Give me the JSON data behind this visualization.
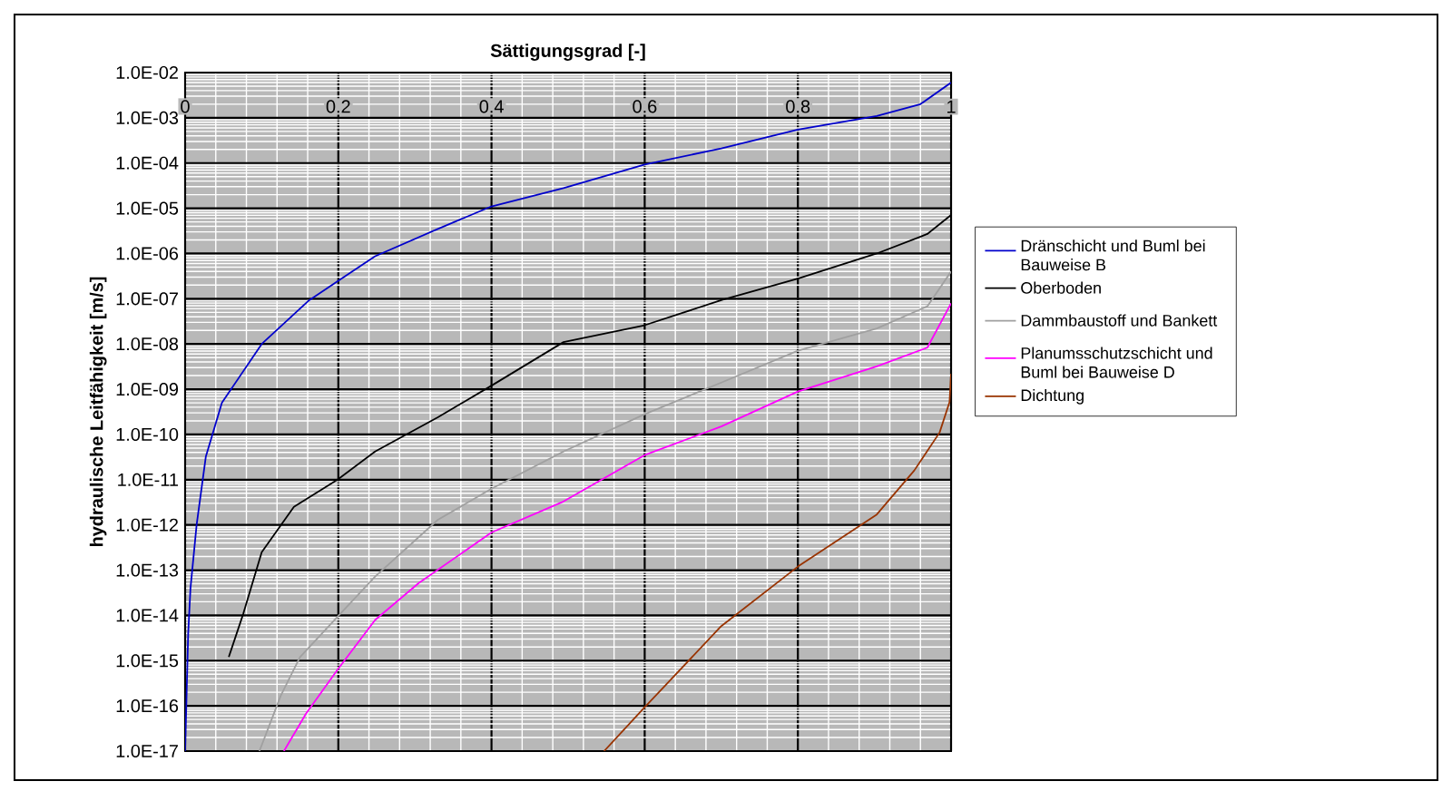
{
  "chart_data": {
    "type": "line",
    "xlabel": "Sättigungsgrad [-]",
    "ylabel": "hydraulische Leitfähigkeit [m/s]",
    "log": "y",
    "grid": true,
    "legend": "right",
    "marker": "none",
    "line_style": "solid",
    "xlim": [
      0,
      1
    ],
    "xticks": [
      0,
      0.2,
      0.4,
      0.6,
      0.8,
      1
    ],
    "ylim": [
      1e-17,
      0.01
    ],
    "yticks": [
      {
        "value": 1e-17,
        "label": "1.0E-17"
      },
      {
        "value": 1e-16,
        "label": "1.0E-16"
      },
      {
        "value": 1e-15,
        "label": "1.0E-15"
      },
      {
        "value": 1e-14,
        "label": "1.0E-14"
      },
      {
        "value": 1e-13,
        "label": "1.0E-13"
      },
      {
        "value": 1e-12,
        "label": "1.0E-12"
      },
      {
        "value": 1e-11,
        "label": "1.0E-11"
      },
      {
        "value": 1e-10,
        "label": "1.0E-10"
      },
      {
        "value": 1e-09,
        "label": "1.0E-09"
      },
      {
        "value": 1e-08,
        "label": "1.0E-08"
      },
      {
        "value": 1e-07,
        "label": "1.0E-07"
      },
      {
        "value": 1e-06,
        "label": "1.0E-06"
      },
      {
        "value": 1e-05,
        "label": "1.0E-05"
      },
      {
        "value": 0.0001,
        "label": "1.0E-04"
      },
      {
        "value": 0.001,
        "label": "1.0E-03"
      },
      {
        "value": 0.01,
        "label": "1.0E-02"
      }
    ],
    "series": [
      {
        "name": "Dränschicht und Buml bei Bauweise B",
        "color": "#0000cc",
        "x": [
          0,
          0.004,
          0.007,
          0.015,
          0.027,
          0.048,
          0.06,
          0.1,
          0.162,
          0.2,
          0.248,
          0.33,
          0.4,
          0.494,
          0.6,
          0.7,
          0.8,
          0.903,
          0.96,
          1
        ],
        "values": [
          1e-17,
          4e-15,
          4e-14,
          1e-12,
          3.2e-11,
          5e-10,
          1e-09,
          1e-08,
          9.3e-08,
          2.5e-07,
          8.7e-07,
          3.5e-06,
          1.1e-05,
          2.8e-05,
          9.3e-05,
          0.00021,
          0.00055,
          0.0011,
          0.002,
          0.006
        ]
      },
      {
        "name": "Oberboden",
        "color": "#000000",
        "x": [
          0.057,
          0.076,
          0.1,
          0.142,
          0.199,
          0.248,
          0.33,
          0.4,
          0.494,
          0.6,
          0.7,
          0.8,
          0.903,
          0.969,
          1
        ],
        "values": [
          1.2e-15,
          1.1e-14,
          2.5e-13,
          2.5e-12,
          1e-11,
          4.2e-11,
          2.4e-10,
          1.2e-09,
          1.1e-08,
          2.6e-08,
          9.3e-08,
          2.8e-07,
          1e-06,
          2.7e-06,
          7.1e-06
        ]
      },
      {
        "name": "Dammbaustoff und Bankett",
        "color": "#a0a0a0",
        "x": [
          0.097,
          0.125,
          0.15,
          0.199,
          0.248,
          0.33,
          0.4,
          0.494,
          0.6,
          0.7,
          0.8,
          0.903,
          0.969,
          1
        ],
        "values": [
          1e-17,
          1.7e-16,
          1.2e-15,
          9.3e-15,
          7.2e-14,
          1.3e-12,
          6.3e-12,
          4.2e-11,
          2.8e-10,
          1.4e-09,
          7.1e-09,
          2.2e-08,
          6.8e-08,
          4e-07
        ]
      },
      {
        "name": "Planumsschutzschicht und Buml bei Bauweise D",
        "color": "#ff00ff",
        "x": [
          0.129,
          0.158,
          0.199,
          0.248,
          0.305,
          0.4,
          0.494,
          0.6,
          0.7,
          0.8,
          0.903,
          0.969,
          1
        ],
        "values": [
          1e-17,
          6.8e-17,
          6.3e-16,
          7.9e-15,
          5.2e-14,
          6.8e-13,
          3.3e-12,
          3.5e-11,
          1.5e-10,
          8.9e-10,
          3.2e-09,
          8.3e-09,
          7.9e-08
        ]
      },
      {
        "name": "Dichtung",
        "color": "#993300",
        "x": [
          0.547,
          0.6,
          0.7,
          0.8,
          0.903,
          0.952,
          0.985,
          0.998,
          1
        ],
        "values": [
          1e-17,
          9.3e-17,
          5.8e-15,
          1.2e-13,
          1.7e-12,
          1.6e-11,
          1.1e-10,
          5.2e-10,
          2.2e-09
        ]
      }
    ]
  }
}
